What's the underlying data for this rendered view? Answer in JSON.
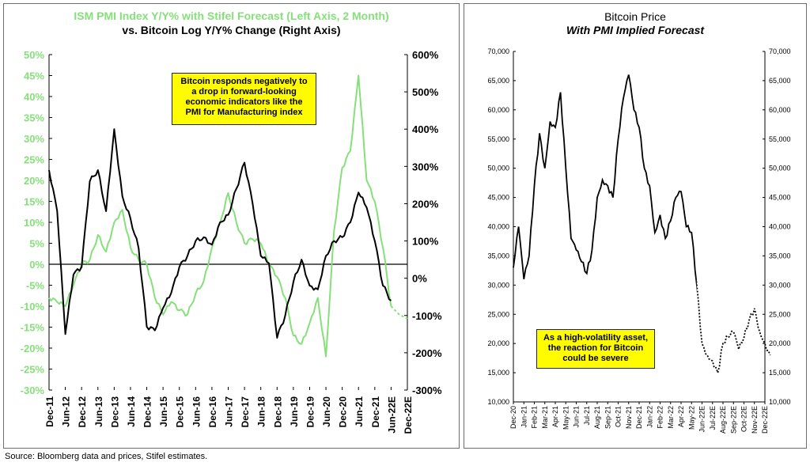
{
  "source": "Source: Bloomberg data and prices, Stifel estimates.",
  "colors": {
    "pmi": "#86e07a",
    "btc": "#000000",
    "note_bg": "#fffb00"
  },
  "chart_data": [
    {
      "type": "line",
      "title": "ISM PMI Index Y/Y% with Stifel Forecast (Left Axis, 2 Month)",
      "subtitle": "vs. Bitcoin Log Y/Y% Change (Right Axis)",
      "annotation": "Bitcoin responds negatively to a drop in forward-looking economic indicators like the PMI for Manufacturing index",
      "y_ticks": [
        "50%",
        "45%",
        "40%",
        "35%",
        "30%",
        "25%",
        "20%",
        "15%",
        "10%",
        "5%",
        "0%",
        "-5%",
        "-10%",
        "-15%",
        "-20%",
        "-25%",
        "-30%"
      ],
      "y2_ticks": [
        "600%",
        "500%",
        "400%",
        "300%",
        "200%",
        "100%",
        "0%",
        "-100%",
        "-200%",
        "-300%"
      ],
      "x_ticks": [
        "Dec-11",
        "Jun-12",
        "Dec-12",
        "Jun-13",
        "Dec-13",
        "Jun-14",
        "Dec-14",
        "Jun-15",
        "Dec-15",
        "Jun-16",
        "Dec-16",
        "Jun-17",
        "Dec-17",
        "Jun-18",
        "Dec-18",
        "Jun-19",
        "Dec-19",
        "Jun-20",
        "Dec-20",
        "Jun-21",
        "Dec-21",
        "Jun-22E",
        "Dec-22E"
      ],
      "ylim": [
        -30,
        50
      ],
      "y2lim": [
        -300,
        600
      ],
      "series": [
        {
          "axis": "left",
          "x": [
            "Dec-11",
            "Mar-12",
            "Jun-12",
            "Sep-12",
            "Dec-12",
            "Mar-13",
            "Jun-13",
            "Sep-13",
            "Dec-13",
            "Mar-14",
            "Jun-14",
            "Sep-14",
            "Dec-14",
            "Mar-15",
            "Jun-15",
            "Sep-15",
            "Dec-15",
            "Mar-16",
            "Jun-16",
            "Sep-16",
            "Dec-16",
            "Mar-17",
            "Jun-17",
            "Sep-17",
            "Dec-17",
            "Mar-18",
            "Jun-18",
            "Sep-18",
            "Dec-18",
            "Mar-19",
            "Jun-19",
            "Sep-19",
            "Dec-19",
            "Mar-20",
            "Jun-20",
            "Sep-20",
            "Dec-20",
            "Mar-21",
            "Jun-21",
            "Sep-21",
            "Dec-21",
            "Mar-22",
            "Jun-22E",
            "Sep-22E",
            "Dec-22E"
          ],
          "values": [
            -8,
            -9,
            -10,
            -5,
            0,
            1,
            7,
            3,
            10,
            13,
            4,
            1,
            0,
            -8,
            -12,
            -9,
            -11,
            -12,
            -7,
            -4,
            4,
            10,
            17,
            10,
            5,
            6,
            5,
            0,
            -3,
            -8,
            -17,
            -19,
            -14,
            -8,
            -22,
            8,
            23,
            27,
            45,
            20,
            15,
            4,
            -10,
            -12,
            -13
          ]
        },
        {
          "axis": "right",
          "x": [
            "Dec-11",
            "Mar-12",
            "Jun-12",
            "Sep-12",
            "Dec-12",
            "Mar-13",
            "Jun-13",
            "Sep-13",
            "Dec-13",
            "Mar-14",
            "Jun-14",
            "Sep-14",
            "Dec-14",
            "Mar-15",
            "Jun-15",
            "Sep-15",
            "Dec-15",
            "Mar-16",
            "Jun-16",
            "Sep-16",
            "Dec-16",
            "Mar-17",
            "Jun-17",
            "Sep-17",
            "Dec-17",
            "Mar-18",
            "Jun-18",
            "Sep-18",
            "Dec-18",
            "Mar-19",
            "Jun-19",
            "Sep-19",
            "Dec-19",
            "Mar-20",
            "Jun-20",
            "Sep-20",
            "Dec-20",
            "Mar-21",
            "Jun-21",
            "Sep-21",
            "Dec-21",
            "Mar-22",
            "Jun-22E"
          ],
          "values": [
            290,
            180,
            -150,
            10,
            30,
            260,
            290,
            180,
            400,
            220,
            160,
            80,
            -130,
            -140,
            -80,
            -40,
            30,
            60,
            100,
            110,
            90,
            150,
            170,
            240,
            310,
            200,
            60,
            40,
            -160,
            -100,
            -10,
            50,
            -20,
            -30,
            60,
            100,
            110,
            150,
            230,
            190,
            100,
            -20,
            -60
          ]
        }
      ]
    },
    {
      "type": "line",
      "title": "Bitcoin Price",
      "subtitle": "With PMI Implied Forecast",
      "annotation": "As a high-volatility asset, the reaction for Bitcoin could be severe",
      "y_ticks": [
        "70,000",
        "65,000",
        "60,000",
        "55,000",
        "50,000",
        "45,000",
        "40,000",
        "35,000",
        "30,000",
        "25,000",
        "20,000",
        "15,000",
        "10,000"
      ],
      "x_ticks": [
        "Dec-20",
        "Jan-21",
        "Feb-21",
        "Mar-21",
        "Apr-21",
        "May-21",
        "Jun-21",
        "Jul-21",
        "Aug-21",
        "Sep-21",
        "Oct-21",
        "Nov-21",
        "Dec-21",
        "Jan-22",
        "Feb-22",
        "Mar-22",
        "Apr-22",
        "May-22",
        "Jun-22E",
        "Jul-22E",
        "Aug-22E",
        "Sep-22E",
        "Oct-22E",
        "Nov-22E",
        "Dec-22E"
      ],
      "ylim": [
        10000,
        70000
      ],
      "series": [
        {
          "x": [
            "Dec-20",
            "Dec-20",
            "Jan-21",
            "Jan-21",
            "Feb-21",
            "Feb-21",
            "Mar-21",
            "Mar-21",
            "Apr-21",
            "Apr-21",
            "May-21",
            "May-21",
            "Jun-21",
            "Jun-21",
            "Jul-21",
            "Jul-21",
            "Aug-21",
            "Aug-21",
            "Sep-21",
            "Sep-21",
            "Oct-21",
            "Oct-21",
            "Nov-21",
            "Nov-21",
            "Dec-21",
            "Dec-21",
            "Jan-22",
            "Jan-22",
            "Feb-22",
            "Feb-22",
            "Mar-22",
            "Mar-22",
            "Apr-22",
            "Apr-22",
            "May-22",
            "May-22",
            "Jun-22E",
            "Jun-22E",
            "Jul-22E",
            "Jul-22E",
            "Aug-22E",
            "Aug-22E",
            "Sep-22E",
            "Sep-22E",
            "Oct-22E",
            "Oct-22E",
            "Nov-22E",
            "Nov-22E",
            "Dec-22E",
            "Dec-22E"
          ],
          "values": [
            33000,
            40000,
            31000,
            35000,
            47000,
            56000,
            50000,
            58000,
            57000,
            63000,
            50000,
            38000,
            36000,
            34000,
            32000,
            36000,
            45000,
            48000,
            47000,
            45000,
            55000,
            62000,
            66000,
            60000,
            57000,
            50000,
            47000,
            39000,
            42000,
            38000,
            41000,
            45000,
            46000,
            40000,
            39000,
            30000,
            20000,
            18000,
            17000,
            15000,
            20000,
            21000,
            22000,
            19000,
            21000,
            24000,
            26000,
            22000,
            20000,
            18000
          ]
        }
      ]
    }
  ]
}
